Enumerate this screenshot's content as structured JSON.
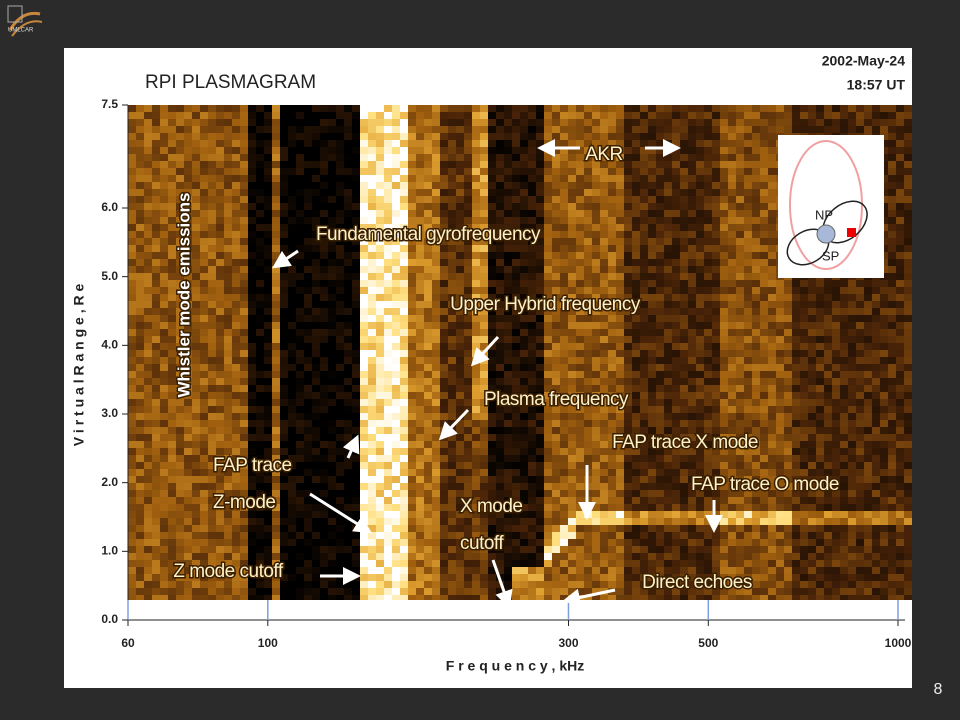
{
  "logo": "UMLCAR",
  "slide_number": "8",
  "chart_data": {
    "type": "plasmagram",
    "title": "RPI PLASMAGRAM",
    "date": "2002-May-24",
    "time": "18:57 UT",
    "x_label": "F r e q u e n c y ,  kHz",
    "y_label": "V i r t u a l   R a n g e ,   R e",
    "x_scale": "log",
    "xlim": [
      60,
      1000
    ],
    "xticks": [
      60,
      100,
      300,
      500,
      1000
    ],
    "ylim": [
      0,
      7.5
    ],
    "yticks": [
      {
        "value": 0,
        "label": "0.0"
      },
      {
        "value": 1,
        "label": "1.0"
      },
      {
        "value": 2,
        "label": "2.0"
      },
      {
        "value": 3,
        "label": "3.0"
      },
      {
        "value": 4,
        "label": "4.0"
      },
      {
        "value": 5,
        "label": "5.0"
      },
      {
        "value": 6,
        "label": "6.0"
      },
      7.5
    ],
    "annotations": [
      {
        "lines": [
          "AKR"
        ]
      },
      {
        "lines": [
          "Fundamental  gyrofrequency"
        ]
      },
      {
        "lines": [
          "Upper  Hybrid  frequency"
        ]
      },
      {
        "lines": [
          "Plasma  frequency"
        ]
      },
      {
        "lines": [
          "FAP  trace  X  mode"
        ]
      },
      {
        "lines": [
          "FAP  trace  O  mode"
        ]
      },
      {
        "lines": [
          "FAP  trace",
          "Z-mode"
        ]
      },
      {
        "lines": [
          "X  mode",
          "cutoff"
        ]
      },
      {
        "lines": [
          "Z  mode  cutoff"
        ]
      },
      {
        "lines": [
          "Direct  echoes"
        ]
      },
      {
        "lines": [
          "Whistler mode emissions"
        ]
      }
    ],
    "inset_labels": [
      "NP",
      "SP"
    ]
  }
}
